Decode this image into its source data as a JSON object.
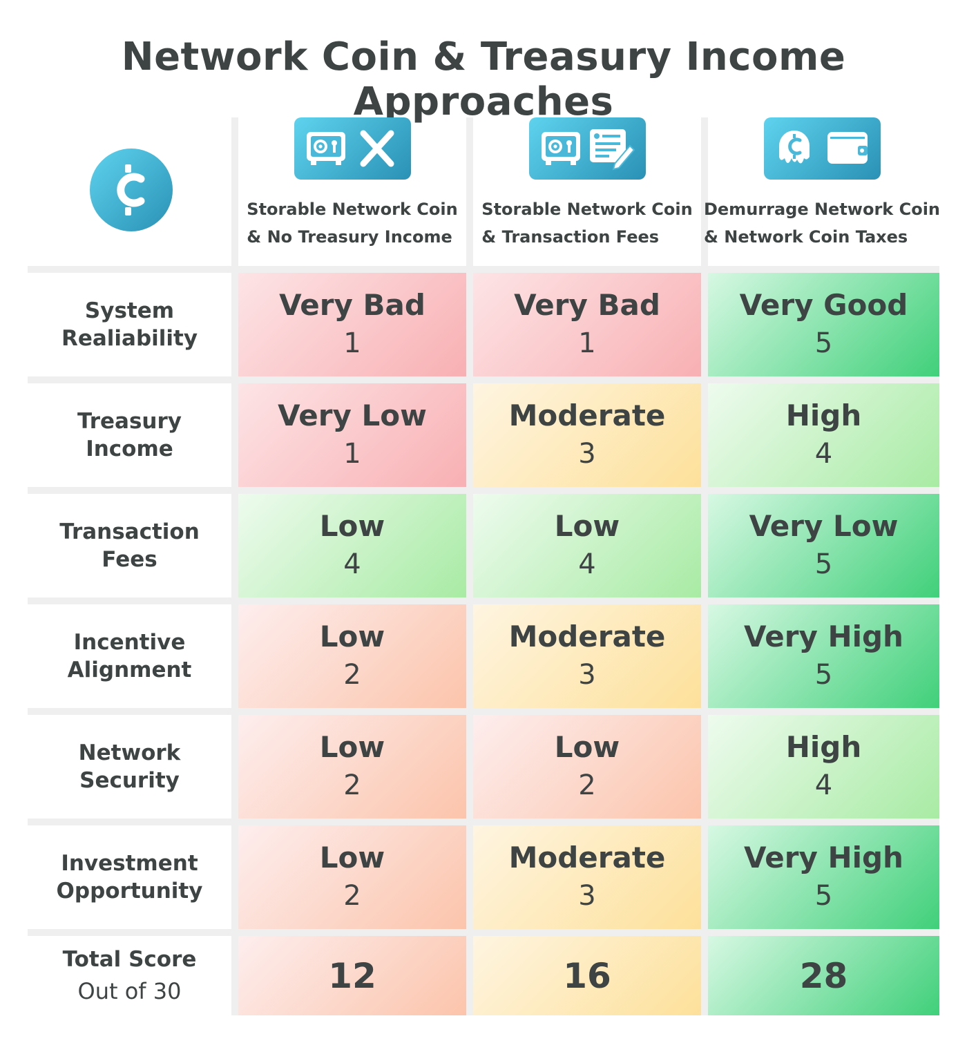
{
  "title": "Network Coin & Treasury Income Approaches",
  "columns": [
    {
      "line1": "Storable Network Coin",
      "line2": "& No Treasury Income",
      "icon": "vault-and-x-icon"
    },
    {
      "line1": "Storable Network Coin",
      "line2": "& Transaction Fees",
      "icon": "vault-and-invoice-icon"
    },
    {
      "line1": "Demurrage Network Coin",
      "line2": "& Network Coin Taxes",
      "icon": "melting-coin-and-wallet-icon"
    }
  ],
  "rows": [
    {
      "line1": "System",
      "line2": "Realiability",
      "cells": [
        {
          "rating": "Very Bad",
          "score": "1",
          "tone": "red"
        },
        {
          "rating": "Very Bad",
          "score": "1",
          "tone": "red"
        },
        {
          "rating": "Very Good",
          "score": "5",
          "tone": "green"
        }
      ]
    },
    {
      "line1": "Treasury",
      "line2": "Income",
      "cells": [
        {
          "rating": "Very Low",
          "score": "1",
          "tone": "red"
        },
        {
          "rating": "Moderate",
          "score": "3",
          "tone": "yellow"
        },
        {
          "rating": "High",
          "score": "4",
          "tone": "lightgreen"
        }
      ]
    },
    {
      "line1": "Transaction",
      "line2": "Fees",
      "cells": [
        {
          "rating": "Low",
          "score": "4",
          "tone": "lightgreen"
        },
        {
          "rating": "Low",
          "score": "4",
          "tone": "lightgreen"
        },
        {
          "rating": "Very Low",
          "score": "5",
          "tone": "green"
        }
      ]
    },
    {
      "line1": "Incentive",
      "line2": "Alignment",
      "cells": [
        {
          "rating": "Low",
          "score": "2",
          "tone": "peach"
        },
        {
          "rating": "Moderate",
          "score": "3",
          "tone": "yellow"
        },
        {
          "rating": "Very High",
          "score": "5",
          "tone": "green"
        }
      ]
    },
    {
      "line1": "Network",
      "line2": "Security",
      "cells": [
        {
          "rating": "Low",
          "score": "2",
          "tone": "peach"
        },
        {
          "rating": "Low",
          "score": "2",
          "tone": "peach"
        },
        {
          "rating": "High",
          "score": "4",
          "tone": "lightgreen"
        }
      ]
    },
    {
      "line1": "Investment",
      "line2": "Opportunity",
      "cells": [
        {
          "rating": "Low",
          "score": "2",
          "tone": "peach"
        },
        {
          "rating": "Moderate",
          "score": "3",
          "tone": "yellow"
        },
        {
          "rating": "Very High",
          "score": "5",
          "tone": "green"
        }
      ]
    }
  ],
  "total": {
    "line1": "Total Score",
    "line2": "Out of 30",
    "cells": [
      {
        "score": "12",
        "tone": "peach"
      },
      {
        "score": "16",
        "tone": "yellow"
      },
      {
        "score": "28",
        "tone": "green"
      }
    ]
  },
  "colors": {
    "text": "#3e4444",
    "icon_gradient_start": "#5ed3ee",
    "icon_gradient_end": "#2a91b5",
    "separator": "#efefef"
  },
  "chart_data": {
    "type": "table",
    "title": "Network Coin & Treasury Income Approaches",
    "column_headers": [
      "Storable Network Coin & No Treasury Income",
      "Storable Network Coin & Transaction Fees",
      "Demurrage Network Coin & Network Coin Taxes"
    ],
    "row_headers": [
      "System Realiability",
      "Treasury Income",
      "Transaction Fees",
      "Incentive Alignment",
      "Network Security",
      "Investment Opportunity",
      "Total Score Out of 30"
    ],
    "values": [
      [
        1,
        1,
        5
      ],
      [
        1,
        3,
        4
      ],
      [
        4,
        4,
        5
      ],
      [
        2,
        3,
        5
      ],
      [
        2,
        2,
        4
      ],
      [
        2,
        3,
        5
      ],
      [
        12,
        16,
        28
      ]
    ],
    "ratings": [
      [
        "Very Bad",
        "Very Bad",
        "Very Good"
      ],
      [
        "Very Low",
        "Moderate",
        "High"
      ],
      [
        "Low",
        "Low",
        "Very Low"
      ],
      [
        "Low",
        "Moderate",
        "Very High"
      ],
      [
        "Low",
        "Low",
        "High"
      ],
      [
        "Low",
        "Moderate",
        "Very High"
      ]
    ]
  }
}
